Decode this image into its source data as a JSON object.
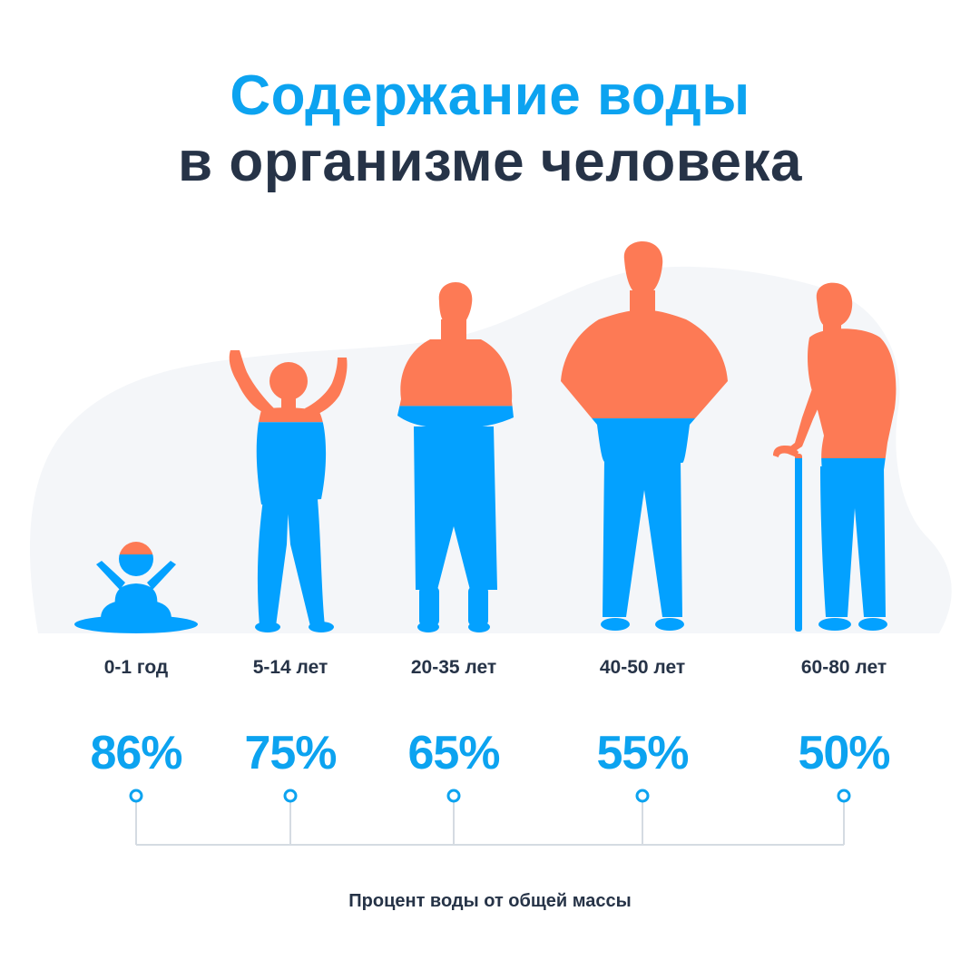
{
  "title": {
    "line1": "Содержание воды",
    "line2": "в организме человека",
    "line1_color": "#0ca3f0",
    "line2_color": "#263347"
  },
  "colors": {
    "water": "#03a1ff",
    "body_dry": "#fd7a55",
    "background_blob": "#f4f6f9",
    "axis": "#d5dbe2",
    "marker": "#0ca3f0",
    "label_text": "#263347"
  },
  "chart_data": {
    "type": "bar",
    "categories": [
      "0-1 год",
      "5-14 лет",
      "20-35 лет",
      "40-50 лет",
      "60-80 лет"
    ],
    "values": [
      86,
      75,
      65,
      55,
      50
    ],
    "value_labels": [
      "86%",
      "75%",
      "65%",
      "55%",
      "50%"
    ],
    "xlabel": "Процент воды от общей массы",
    "ylabel": "",
    "ylim": [
      0,
      100
    ],
    "grid": false,
    "legend": "none"
  }
}
